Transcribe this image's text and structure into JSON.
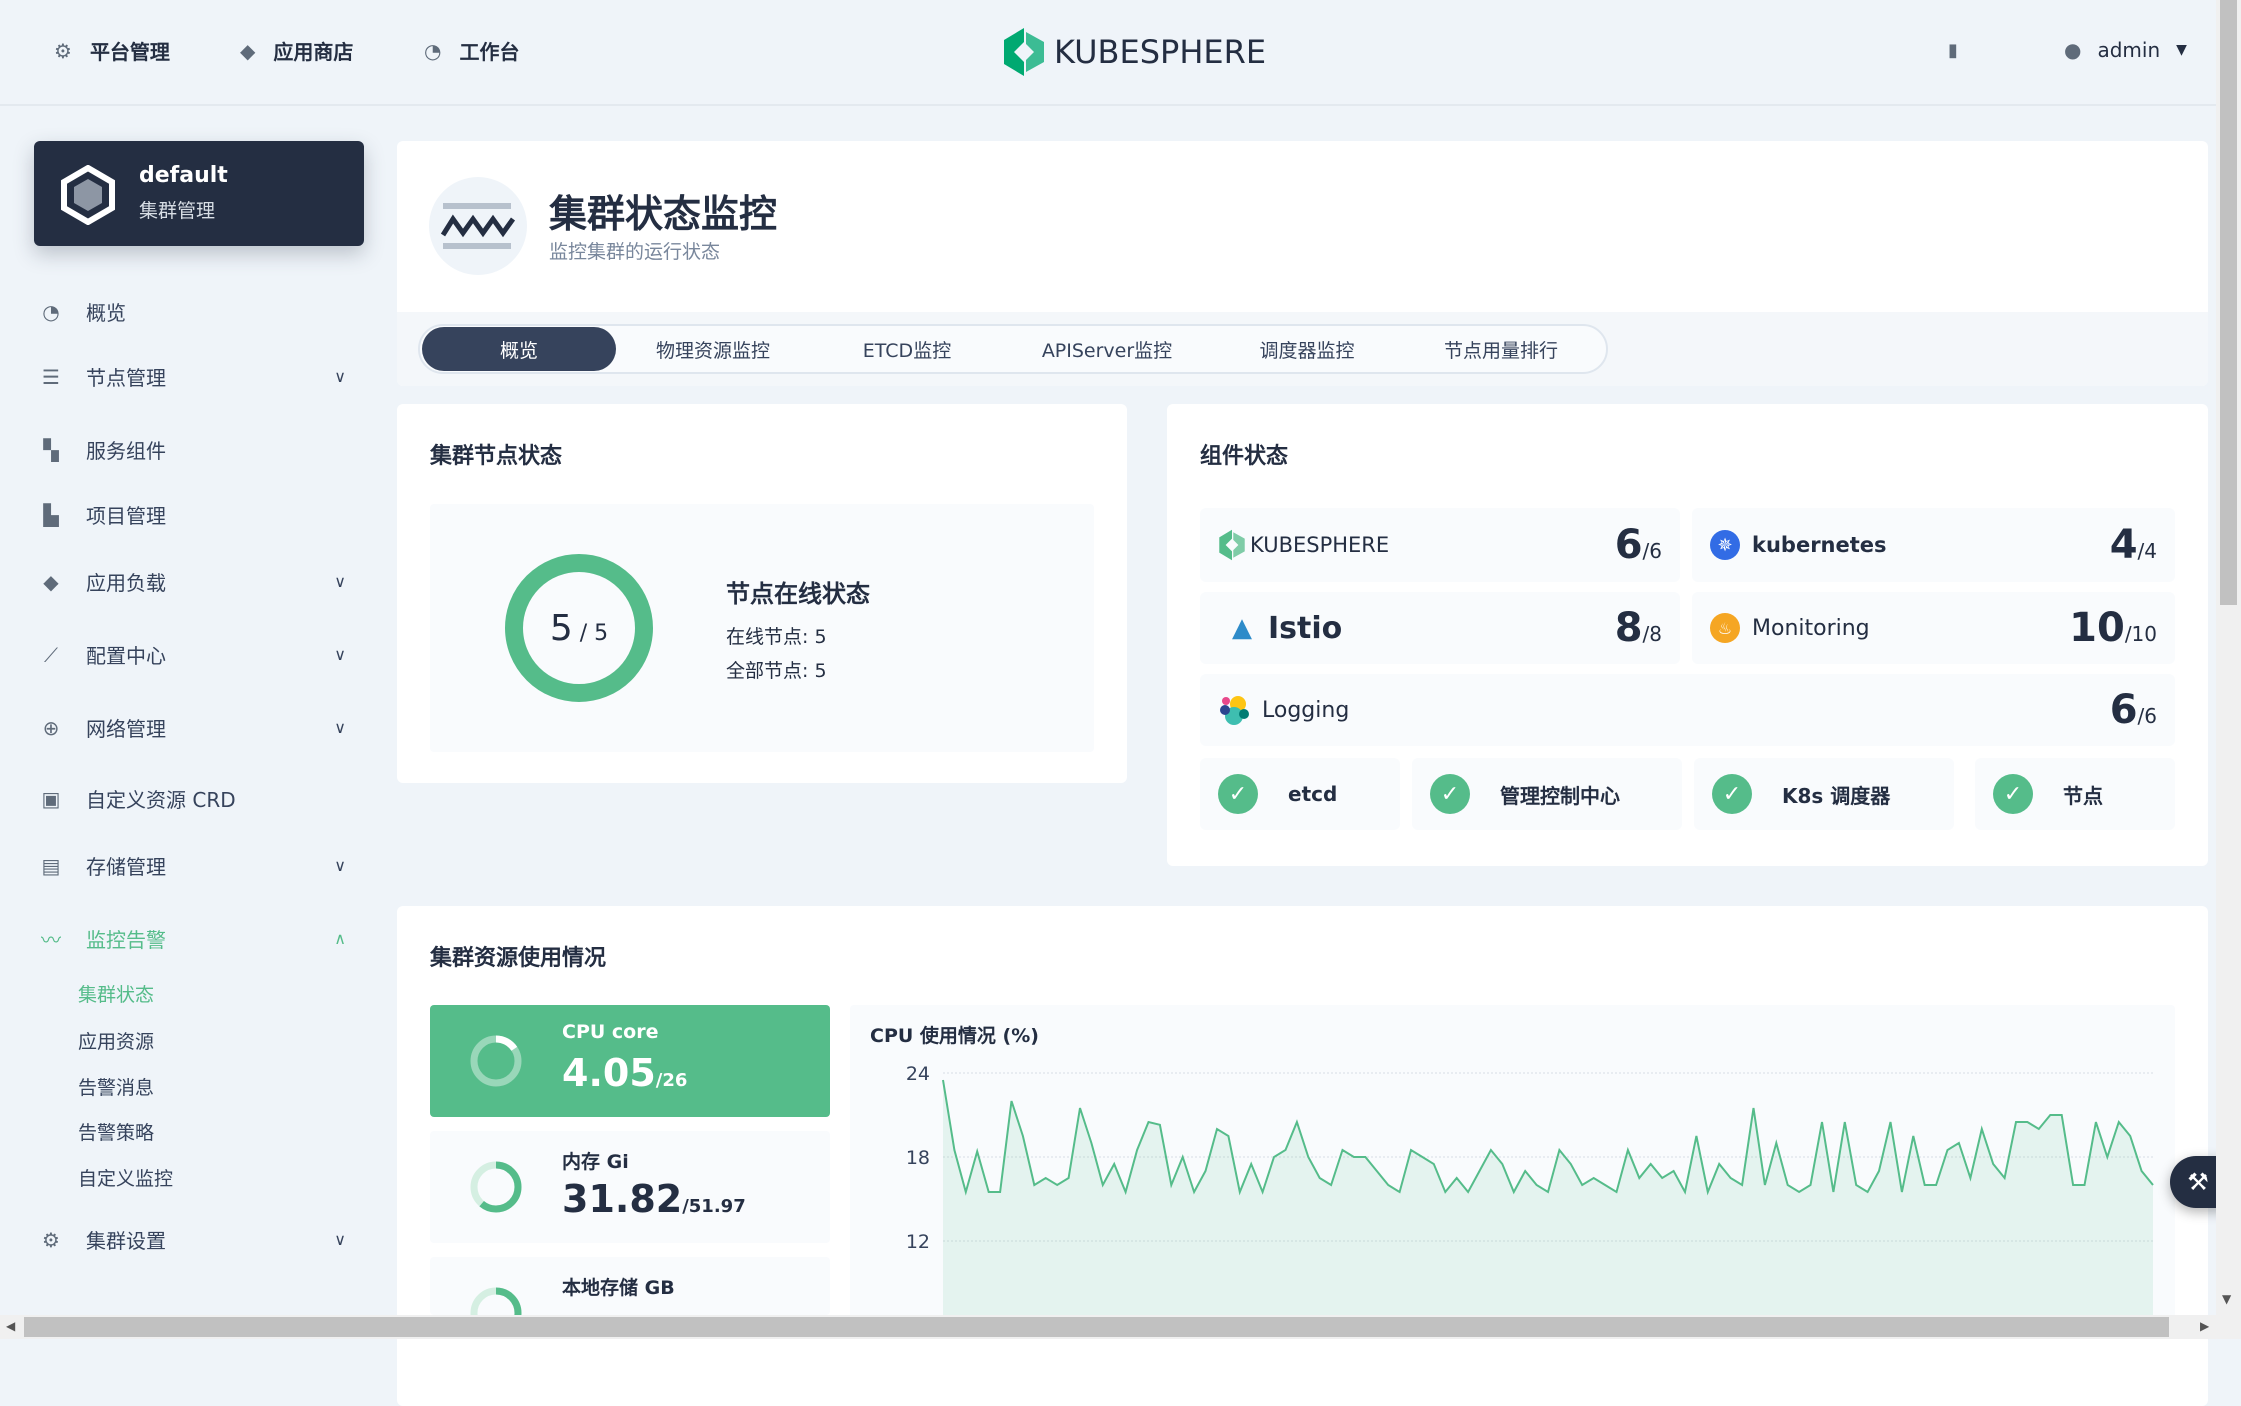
{
  "topnav": {
    "items": [
      {
        "label": "平台管理",
        "icon": "gear-icon"
      },
      {
        "label": "应用商店",
        "icon": "layers-icon"
      },
      {
        "label": "工作台",
        "icon": "dashboard-icon"
      }
    ],
    "logo": "KUBESPHERE",
    "user": "admin"
  },
  "sidebar": {
    "cluster_name": "default",
    "cluster_sub": "集群管理",
    "items": [
      {
        "label": "概览",
        "expand": false
      },
      {
        "label": "节点管理",
        "expand": true
      },
      {
        "label": "服务组件",
        "expand": false
      },
      {
        "label": "项目管理",
        "expand": false
      },
      {
        "label": "应用负载",
        "expand": true
      },
      {
        "label": "配置中心",
        "expand": true
      },
      {
        "label": "网络管理",
        "expand": true
      },
      {
        "label": "自定义资源 CRD",
        "expand": false
      },
      {
        "label": "存储管理",
        "expand": true
      },
      {
        "label": "监控告警",
        "expand": true,
        "open": true
      }
    ],
    "sub_items": [
      "集群状态",
      "应用资源",
      "告警消息",
      "告警策略",
      "自定义监控"
    ],
    "bottom_item": "集群设置"
  },
  "header": {
    "title": "集群状态监控",
    "subtitle": "监控集群的运行状态"
  },
  "tabs": [
    "概览",
    "物理资源监控",
    "ETCD监控",
    "APIServer监控",
    "调度器监控",
    "节点用量排行"
  ],
  "node_status": {
    "title": "集群节点状态",
    "online": "5",
    "total": "5",
    "heading": "节点在线状态",
    "online_label": "在线节点: 5",
    "total_label": "全部节点: 5"
  },
  "components": {
    "title": "组件状态",
    "items": [
      {
        "name": "KUBESPHERE",
        "ok": "6",
        "total": "/6"
      },
      {
        "name": "kubernetes",
        "ok": "4",
        "total": "/4"
      },
      {
        "name": "Istio",
        "ok": "8",
        "total": "/8"
      },
      {
        "name": "Monitoring",
        "ok": "10",
        "total": "/10"
      },
      {
        "name": "Logging",
        "ok": "6",
        "total": "/6"
      }
    ],
    "checks": [
      "etcd",
      "管理控制中心",
      "K8s 调度器",
      "节点"
    ]
  },
  "resources": {
    "title": "集群资源使用情况",
    "items": [
      {
        "label": "CPU core",
        "value": "4.05",
        "total": "/26",
        "fraction": 0.156
      },
      {
        "label": "内存 Gi",
        "value": "31.82",
        "total": "/51.97",
        "fraction": 0.612
      },
      {
        "label": "本地存储 GB",
        "value": "",
        "total": "",
        "fraction": 0.3
      }
    ]
  },
  "colors": {
    "accent": "#55bc8a",
    "dark": "#242e42"
  },
  "chart_data": {
    "type": "area",
    "title": "CPU 使用情况 (%)",
    "ylim": [
      0,
      24
    ],
    "yticks": [
      "24",
      "18",
      "12"
    ],
    "grid": true,
    "values": [
      23.5,
      18.5,
      15.5,
      18.4,
      15.5,
      15.5,
      22,
      19.5,
      16,
      16.5,
      16,
      16.5,
      21.5,
      19,
      16,
      17.5,
      15.5,
      18.5,
      20.5,
      20.3,
      16,
      18,
      15.5,
      17,
      20,
      19.5,
      15.5,
      17.5,
      15.5,
      18,
      18.5,
      20.5,
      18,
      16.5,
      16,
      18.5,
      18,
      18,
      17,
      16,
      15.5,
      18.5,
      18,
      17.5,
      15.5,
      16.5,
      15.5,
      17,
      18.5,
      17.5,
      15.5,
      17,
      16,
      15.5,
      18.5,
      17.5,
      16,
      16.5,
      16,
      15.5,
      18.5,
      16.5,
      17.5,
      16.5,
      17,
      15.5,
      19.5,
      15.5,
      17.5,
      16.5,
      16,
      21.5,
      16,
      19,
      16,
      15.5,
      16,
      20.5,
      15.5,
      20.5,
      16,
      15.5,
      17,
      20.5,
      15.5,
      19.5,
      16,
      16,
      18.5,
      19,
      16.5,
      20,
      17.5,
      16.5,
      20.5,
      20.5,
      20,
      21,
      21,
      16,
      16,
      20.5,
      18,
      20.5,
      19.5,
      17,
      16
    ]
  }
}
